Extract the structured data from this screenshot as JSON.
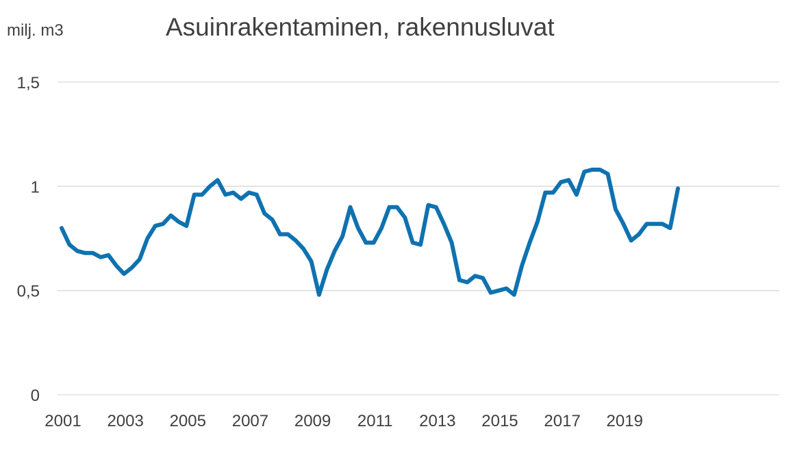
{
  "chart_data": {
    "type": "line",
    "title": "Asuinrakentaminen, rakennusluvat",
    "unit_label": "milj. m3",
    "xlabel": "",
    "ylabel": "",
    "ylim": [
      0,
      1.5
    ],
    "yticks": [
      0,
      0.5,
      1,
      1.5
    ],
    "ytick_labels": [
      "0",
      "0,5",
      "1",
      "1,5"
    ],
    "xtick_labels": [
      "2001",
      "2003",
      "2005",
      "2007",
      "2009",
      "2011",
      "2013",
      "2015",
      "2017",
      "2019"
    ],
    "grid": true,
    "legend": "none",
    "line_color": "#0f72b0",
    "series": [
      {
        "values": [
          0.8,
          0.72,
          0.69,
          0.68,
          0.68,
          0.66,
          0.67,
          0.62,
          0.58,
          0.61,
          0.65,
          0.75,
          0.81,
          0.82,
          0.86,
          0.83,
          0.81,
          0.96,
          0.96,
          1.0,
          1.03,
          0.96,
          0.97,
          0.94,
          0.97,
          0.96,
          0.87,
          0.84,
          0.77,
          0.77,
          0.74,
          0.7,
          0.64,
          0.48,
          0.6,
          0.69,
          0.76,
          0.9,
          0.8,
          0.73,
          0.73,
          0.8,
          0.9,
          0.9,
          0.85,
          0.73,
          0.72,
          0.91,
          0.9,
          0.82,
          0.73,
          0.55,
          0.54,
          0.57,
          0.56,
          0.49,
          0.5,
          0.51,
          0.48,
          0.62,
          0.73,
          0.83,
          0.97,
          0.97,
          1.02,
          1.03,
          0.96,
          1.07,
          1.08,
          1.08,
          1.06,
          0.89,
          0.82,
          0.74,
          0.77,
          0.82,
          0.82,
          0.82,
          0.8,
          0.99
        ]
      }
    ]
  }
}
